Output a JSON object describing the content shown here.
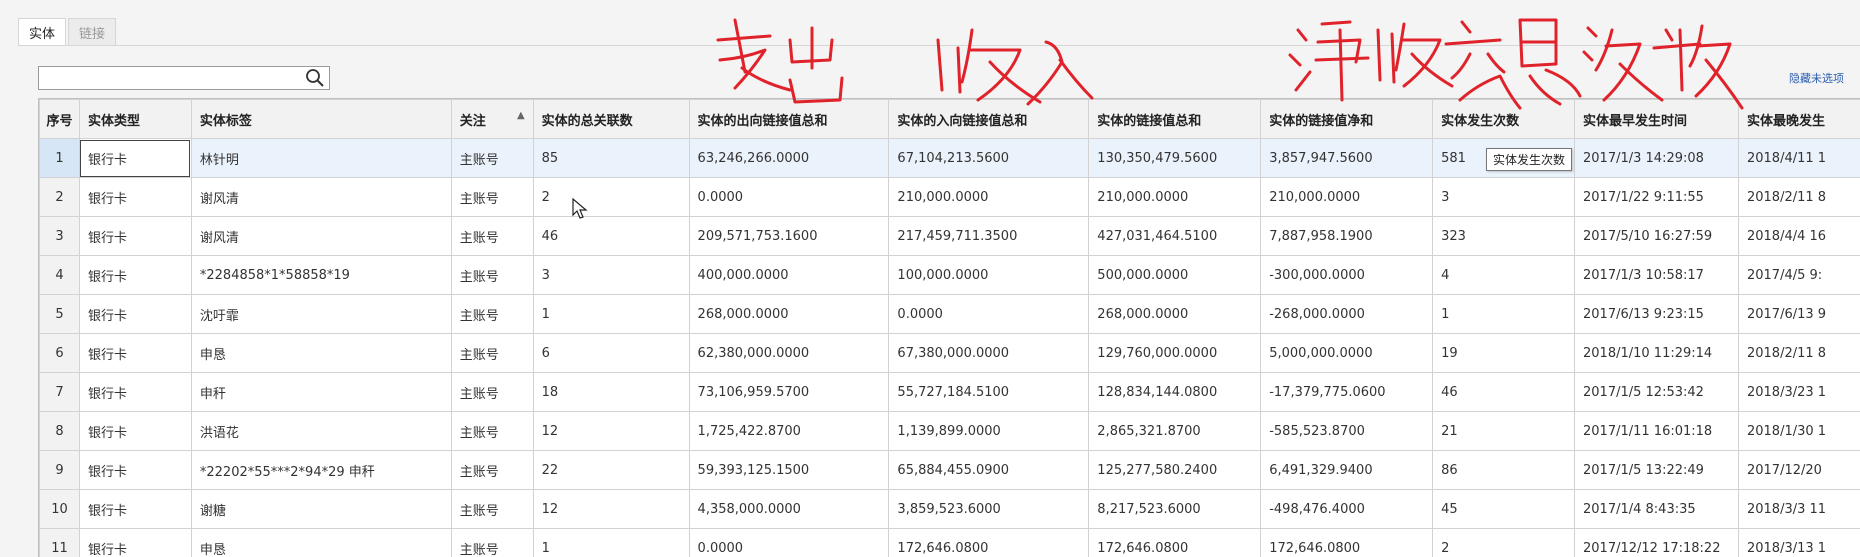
{
  "tabs": [
    {
      "label": "实体",
      "active": true
    },
    {
      "label": "链接",
      "active": false
    }
  ],
  "search": {
    "value": "",
    "placeholder": ""
  },
  "hide_link": "隐藏未选项",
  "table": {
    "columns": [
      "序号",
      "实体类型",
      "实体标签",
      "关注",
      "实体的总关联数",
      "实体的出向链接值总和",
      "实体的入向链接值总和",
      "实体的链接值总和",
      "实体的链接值净和",
      "实体发生次数",
      "实体最早发生时间",
      "实体最晚发生"
    ],
    "rows": [
      [
        "1",
        "银行卡",
        "林针明",
        "主账号",
        "85",
        "63,246,266.0000",
        "67,104,213.5600",
        "130,350,479.5600",
        "3,857,947.5600",
        "581",
        "2017/1/3 14:29:08",
        "2018/4/11 1"
      ],
      [
        "2",
        "银行卡",
        "谢风清",
        "主账号",
        "2",
        "0.0000",
        "210,000.0000",
        "210,000.0000",
        "210,000.0000",
        "3",
        "2017/1/22 9:11:55",
        "2018/2/11 8"
      ],
      [
        "3",
        "银行卡",
        "谢风清",
        "主账号",
        "46",
        "209,571,753.1600",
        "217,459,711.3500",
        "427,031,464.5100",
        "7,887,958.1900",
        "323",
        "2017/5/10 16:27:59",
        "2018/4/4 16"
      ],
      [
        "4",
        "银行卡",
        "*2284858*1*58858*19",
        "主账号",
        "3",
        "400,000.0000",
        "100,000.0000",
        "500,000.0000",
        "-300,000.0000",
        "4",
        "2017/1/3 10:58:17",
        "2017/4/5 9:"
      ],
      [
        "5",
        "银行卡",
        "沈吁霏",
        "主账号",
        "1",
        "268,000.0000",
        "0.0000",
        "268,000.0000",
        "-268,000.0000",
        "1",
        "2017/6/13 9:23:15",
        "2017/6/13 9"
      ],
      [
        "6",
        "银行卡",
        "申恳",
        "主账号",
        "6",
        "62,380,000.0000",
        "67,380,000.0000",
        "129,760,000.0000",
        "5,000,000.0000",
        "19",
        "2018/1/10 11:29:14",
        "2018/2/11 8"
      ],
      [
        "7",
        "银行卡",
        "申秆",
        "主账号",
        "18",
        "73,106,959.5700",
        "55,727,184.5100",
        "128,834,144.0800",
        "-17,379,775.0600",
        "46",
        "2017/1/5 12:53:42",
        "2018/3/23 1"
      ],
      [
        "8",
        "银行卡",
        "洪语花",
        "主账号",
        "12",
        "1,725,422.8700",
        "1,139,899.0000",
        "2,865,321.8700",
        "-585,523.8700",
        "21",
        "2017/1/11 16:01:18",
        "2018/1/30 1"
      ],
      [
        "9",
        "银行卡",
        "*22202*55***2*94*29 申秆",
        "主账号",
        "22",
        "59,393,125.1500",
        "65,884,455.0900",
        "125,277,580.2400",
        "6,491,329.9400",
        "86",
        "2017/1/5 13:22:49",
        "2017/12/20"
      ],
      [
        "10",
        "银行卡",
        "谢糖",
        "主账号",
        "12",
        "4,358,000.0000",
        "3,859,523.6000",
        "8,217,523.6000",
        "-498,476.4000",
        "45",
        "2017/1/4 8:43:35",
        "2018/3/3 11"
      ],
      [
        "11",
        "银行卡",
        "申恳",
        "主账号",
        "1",
        "0.0000",
        "172,646.0800",
        "172,646.0800",
        "172,646.0800",
        "2",
        "2017/12/12 17:18:22",
        "2018/3/13 1"
      ]
    ]
  },
  "tooltip": "实体发生次数",
  "colors": {
    "annotation": "#e0232b",
    "link": "#2a5db0",
    "selected_row": "#eaf2fb"
  }
}
